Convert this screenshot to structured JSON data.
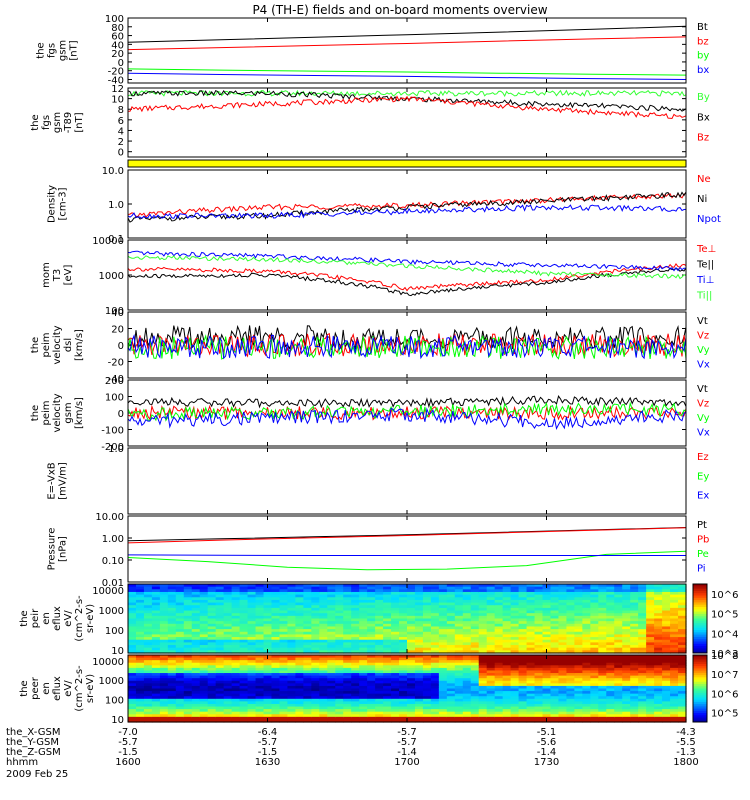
{
  "title": "P4 (TH-E) fields and on-board moments overview",
  "date_label": "2009 Feb 25",
  "colors": {
    "black": "#000000",
    "red": "#ff0000",
    "green": "#00ff00",
    "blue": "#0000ff",
    "bright_green": "#33ff33",
    "yellow": "#ffff00"
  },
  "chart_data": [
    {
      "id": "fgs",
      "type": "line",
      "ylabel": [
        "the",
        "fgs",
        "gsm",
        "[nT]"
      ],
      "ylim": [
        -48,
        100
      ],
      "tick_labels": [
        "100",
        "80",
        "60",
        "40",
        "20",
        "0",
        "-20",
        "-40"
      ],
      "series": [
        {
          "name": "Bt",
          "color": "#000000",
          "x": [
            1600,
            1630,
            1700,
            1730,
            1800
          ],
          "values": [
            45,
            53,
            62,
            71,
            81
          ]
        },
        {
          "name": "bz",
          "color": "#ff0000",
          "x": [
            1600,
            1630,
            1700,
            1730,
            1800
          ],
          "values": [
            28,
            35,
            42,
            50,
            57
          ]
        },
        {
          "name": "by",
          "color": "#00ff00",
          "x": [
            1600,
            1630,
            1700,
            1730,
            1800
          ],
          "values": [
            -16,
            -20,
            -23,
            -27,
            -30
          ]
        },
        {
          "name": "bx",
          "color": "#0000ff",
          "x": [
            1600,
            1630,
            1700,
            1730,
            1800
          ],
          "values": [
            -26,
            -30,
            -33,
            -37,
            -40
          ]
        }
      ]
    },
    {
      "id": "fgs_t89",
      "type": "line",
      "ylabel": [
        "the",
        "fgs",
        "gsm",
        "-T89",
        "[nT]"
      ],
      "ylim": [
        -1,
        12
      ],
      "tick_labels": [
        "12",
        "10",
        "8",
        "6",
        "4",
        "2",
        "0"
      ],
      "series": [
        {
          "name": "By",
          "color": "#33ff33",
          "x": [
            1600,
            1630,
            1700,
            1730,
            1800
          ],
          "values": [
            11,
            11,
            11,
            11,
            11
          ]
        },
        {
          "name": "Bx",
          "color": "#000000",
          "x": [
            1600,
            1630,
            1700,
            1730,
            1800
          ],
          "values": [
            11,
            11,
            10,
            9,
            8
          ]
        },
        {
          "name": "Bz",
          "color": "#ff0000",
          "x": [
            1600,
            1630,
            1700,
            1730,
            1800
          ],
          "values": [
            8,
            9,
            10,
            8,
            6.5
          ]
        }
      ]
    },
    {
      "id": "density",
      "type": "line",
      "ylabel": [
        "Density",
        "[cm-3]"
      ],
      "ylim": [
        0.1,
        10
      ],
      "scale": "log",
      "tick_labels": [
        "10.0",
        "1.0",
        "0.1"
      ],
      "series": [
        {
          "name": "Ne",
          "color": "#ff0000",
          "x": [
            1600,
            1630,
            1700,
            1730,
            1800
          ],
          "values": [
            0.45,
            0.8,
            0.9,
            1.3,
            1.8
          ]
        },
        {
          "name": "Ni",
          "color": "#000000",
          "x": [
            1600,
            1630,
            1700,
            1730,
            1800
          ],
          "values": [
            0.35,
            0.45,
            0.8,
            1.2,
            1.9
          ]
        },
        {
          "name": "Npot",
          "color": "#0000ff",
          "x": [
            1600,
            1630,
            1700,
            1730,
            1800
          ],
          "values": [
            0.45,
            0.45,
            0.6,
            0.8,
            0.7
          ]
        }
      ]
    },
    {
      "id": "temperature",
      "type": "line",
      "ylabel": [
        "mom",
        "T3",
        "[eV]"
      ],
      "ylim": [
        100,
        10000
      ],
      "scale": "log",
      "tick_labels": [
        "10000",
        "1000",
        "100"
      ],
      "series": [
        {
          "name": "Te⊥",
          "color": "#ff0000",
          "x": [
            1600,
            1630,
            1700,
            1730,
            1800
          ],
          "values": [
            1500,
            1300,
            400,
            700,
            1900
          ]
        },
        {
          "name": "Te||",
          "color": "#000000",
          "x": [
            1600,
            1630,
            1700,
            1730,
            1800
          ],
          "values": [
            900,
            1000,
            280,
            600,
            1500
          ]
        },
        {
          "name": "Ti⊥",
          "color": "#0000ff",
          "x": [
            1600,
            1630,
            1700,
            1730,
            1800
          ],
          "values": [
            4200,
            3500,
            2400,
            1900,
            1500
          ]
        },
        {
          "name": "Ti||",
          "color": "#33ff33",
          "x": [
            1600,
            1630,
            1700,
            1730,
            1800
          ],
          "values": [
            3200,
            2800,
            1800,
            1100,
            900
          ]
        }
      ]
    },
    {
      "id": "velocity_perp",
      "type": "line",
      "ylabel": [
        "the",
        "peim",
        "velocity",
        "dsl",
        "[km/s]"
      ],
      "ylim": [
        -40,
        40
      ],
      "tick_labels": [
        "40",
        "20",
        "0",
        "-20",
        "-40"
      ],
      "series": [
        {
          "name": "Vt",
          "color": "#000000",
          "x": [
            1600,
            1630,
            1700,
            1730,
            1800
          ],
          "values": [
            10,
            10,
            8,
            8,
            10
          ]
        },
        {
          "name": "Vz",
          "color": "#ff0000",
          "x": [
            1600,
            1630,
            1700,
            1730,
            1800
          ],
          "values": [
            0,
            0,
            0,
            0,
            0
          ]
        },
        {
          "name": "Vy",
          "color": "#00ff00",
          "x": [
            1600,
            1630,
            1700,
            1730,
            1800
          ],
          "values": [
            -3,
            -3,
            -3,
            -3,
            -3
          ]
        },
        {
          "name": "Vx",
          "color": "#0000ff",
          "x": [
            1600,
            1630,
            1700,
            1730,
            1800
          ],
          "values": [
            -2,
            -2,
            -2,
            -2,
            -2
          ]
        }
      ]
    },
    {
      "id": "velocity_gsm",
      "type": "line",
      "ylabel": [
        "the",
        "peim",
        "velocity",
        "gsm",
        "[km/s]"
      ],
      "ylim": [
        -200,
        200
      ],
      "tick_labels": [
        "200",
        "100",
        "0",
        "-100",
        "-200"
      ],
      "series": [
        {
          "name": "Vt",
          "color": "#000000",
          "x": [
            1600,
            1630,
            1700,
            1730,
            1800
          ],
          "values": [
            70,
            60,
            60,
            80,
            60
          ]
        },
        {
          "name": "Vz",
          "color": "#ff0000",
          "x": [
            1600,
            1630,
            1700,
            1730,
            1800
          ],
          "values": [
            0,
            0,
            0,
            0,
            0
          ]
        },
        {
          "name": "Vy",
          "color": "#00ff00",
          "x": [
            1600,
            1630,
            1700,
            1730,
            1800
          ],
          "values": [
            -10,
            0,
            10,
            20,
            20
          ]
        },
        {
          "name": "Vx",
          "color": "#0000ff",
          "x": [
            1600,
            1630,
            1700,
            1730,
            1800
          ],
          "values": [
            -50,
            -30,
            -10,
            -60,
            -10
          ]
        }
      ]
    },
    {
      "id": "efield",
      "type": "line",
      "ylabel": [
        "E=-VxB",
        "[mV/m]"
      ],
      "ylim": [
        -1,
        1
      ],
      "tick_labels": [
        "1.0"
      ],
      "series": [
        {
          "name": "Ez",
          "color": "#ff0000",
          "x": [],
          "values": []
        },
        {
          "name": "Ey",
          "color": "#00ff00",
          "x": [],
          "values": []
        },
        {
          "name": "Ex",
          "color": "#0000ff",
          "x": [],
          "values": []
        }
      ]
    },
    {
      "id": "pressure",
      "type": "line",
      "ylabel": [
        "Pressure",
        "[nPa]"
      ],
      "ylim": [
        0.01,
        10
      ],
      "scale": "log",
      "tick_labels": [
        "10.00",
        "1.00",
        "0.10",
        "0.01"
      ],
      "series": [
        {
          "name": "Pt",
          "color": "#000000",
          "x": [
            1600,
            1630,
            1700,
            1730,
            1800
          ],
          "values": [
            0.75,
            1.0,
            1.4,
            2.0,
            3.0
          ]
        },
        {
          "name": "Pb",
          "color": "#ff0000",
          "x": [
            1600,
            1630,
            1700,
            1730,
            1800
          ],
          "values": [
            0.6,
            0.9,
            1.3,
            1.9,
            2.9
          ]
        },
        {
          "name": "Pe",
          "color": "#00ff00",
          "x": [
            1600,
            1630,
            1700,
            1730,
            1745,
            1800
          ],
          "values": [
            0.13,
            0.05,
            0.03,
            0.06,
            0.2,
            0.25
          ]
        },
        {
          "name": "Pi",
          "color": "#0000ff",
          "x": [
            1600,
            1630,
            1700,
            1730,
            1800
          ],
          "values": [
            0.17,
            0.16,
            0.16,
            0.16,
            0.16
          ]
        }
      ]
    },
    {
      "id": "ion_spec",
      "type": "heatmap",
      "ylabel": [
        "the",
        "peir",
        "en",
        "eflux",
        "eV/",
        "(cm^2-s-",
        "sr-eV)"
      ],
      "ylim": [
        7,
        20000
      ],
      "scale": "log",
      "tick_labels": [
        "10000",
        "1000",
        "100",
        "10"
      ],
      "colorbar_labels": [
        "10^6",
        "10^5",
        "10^4",
        "10^3"
      ],
      "colorbar_range": [
        3,
        6.5
      ]
    },
    {
      "id": "electron_spec",
      "type": "heatmap",
      "ylabel": [
        "the",
        "peer",
        "en",
        "eflux",
        "eV/",
        "(cm^2-s-",
        "sr-eV)"
      ],
      "ylim": [
        7,
        20000
      ],
      "scale": "log",
      "tick_labels": [
        "10000",
        "1000",
        "100",
        "10"
      ],
      "colorbar_labels": [
        "10^8",
        "10^7",
        "10^6",
        "10^5"
      ],
      "colorbar_range": [
        4.5,
        8
      ]
    }
  ],
  "x_axis": {
    "ticks": [
      1600,
      1630,
      1700,
      1730,
      1800
    ],
    "rows": [
      {
        "label": "the_X-GSM",
        "values": [
          "-7.0",
          "-6.4",
          "-5.7",
          "-5.1",
          "-4.3"
        ]
      },
      {
        "label": "the_Y-GSM",
        "values": [
          "-5.7",
          "-5.7",
          "-5.7",
          "-5.6",
          "-5.5"
        ]
      },
      {
        "label": "the_Z-GSM",
        "values": [
          "-1.5",
          "-1.5",
          "-1.4",
          "-1.4",
          "-1.3"
        ]
      },
      {
        "label": "hhmm",
        "values": [
          "1600",
          "1630",
          "1700",
          "1730",
          "1800"
        ]
      }
    ]
  }
}
